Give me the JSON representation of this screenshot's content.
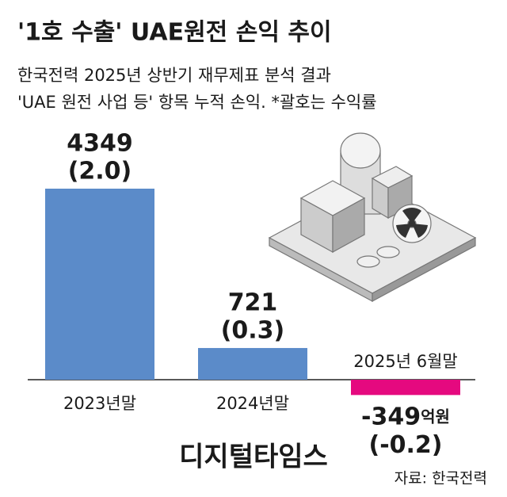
{
  "chart_data": {
    "type": "bar",
    "title": "'1호 수출' UAE원전 손익 추이",
    "subtitle": [
      "한국전력 2025년 상반기 재무제표 분석 결과",
      "'UAE 원전 사업 등' 항목 누적 손익. *괄호는 수익률"
    ],
    "categories": [
      "2023년말",
      "2024년말",
      "2025년 6월말"
    ],
    "values": [
      4349,
      721,
      -349
    ],
    "unit": "억원",
    "rate_labels": [
      "(2.0)",
      "(0.3)",
      "(-0.2)"
    ],
    "colors": [
      "#5b8bc9",
      "#5b8bc9",
      "#e5097f"
    ],
    "source": "자료: 한국전력",
    "watermark": "디지털타임스"
  }
}
